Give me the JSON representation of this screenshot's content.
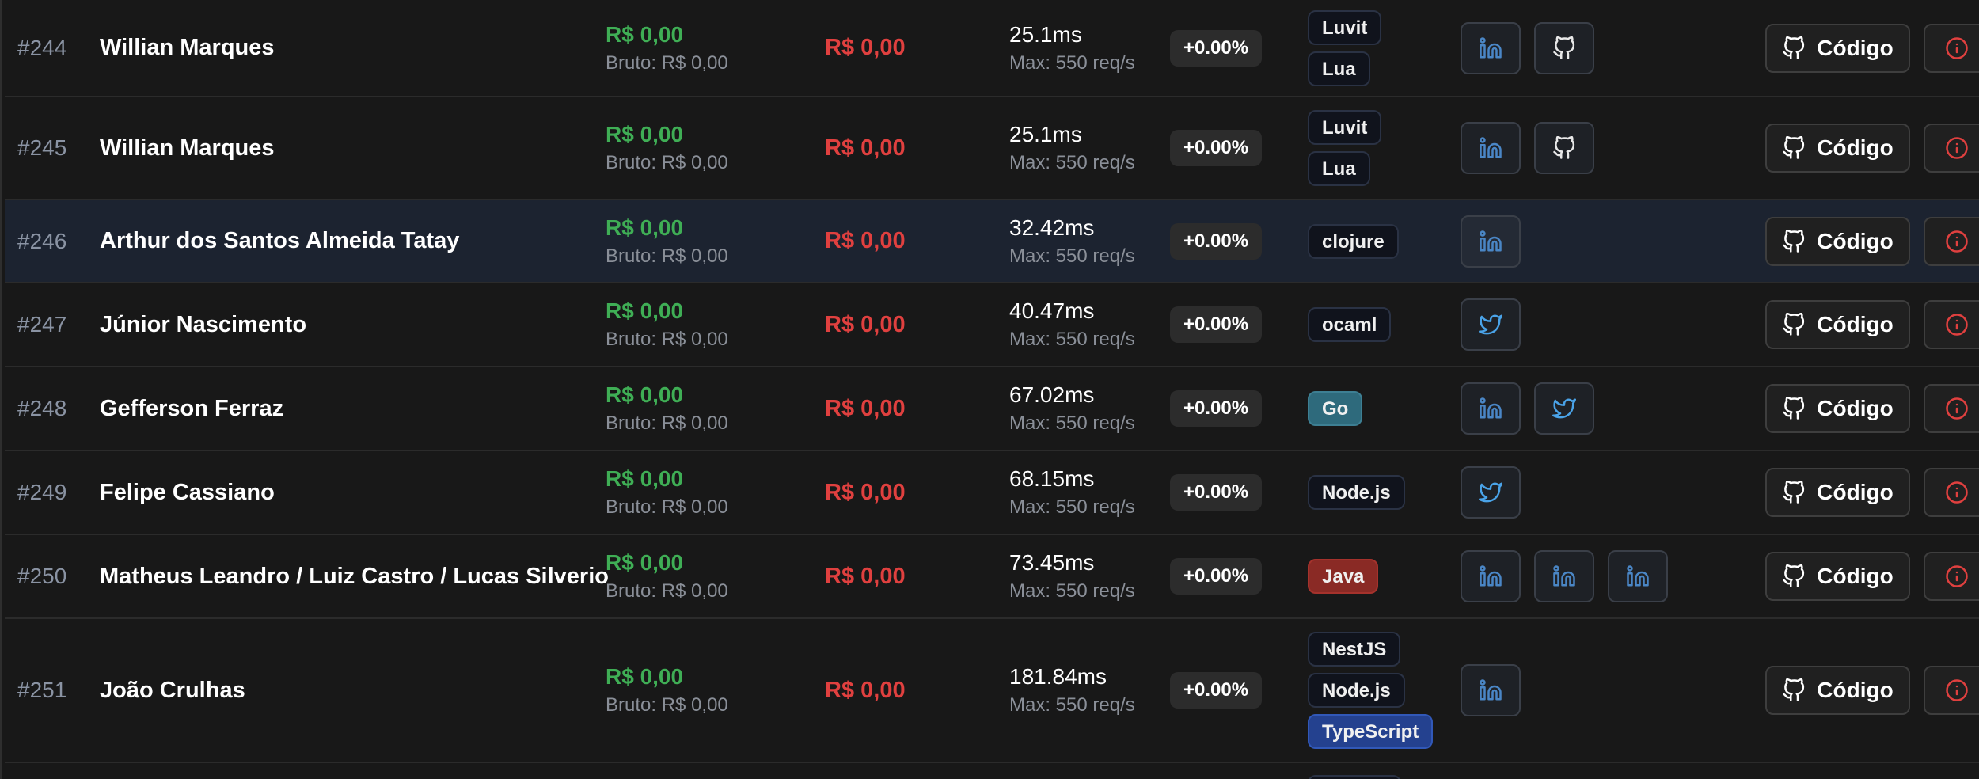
{
  "labels": {
    "code_button": "Código"
  },
  "colors": {
    "positive": "#3fae55",
    "negative": "#e0403f",
    "linkedin": "#4a86c5",
    "twitter": "#4aa3e8",
    "info": "#e0403f"
  },
  "rows": [
    {
      "rank": "#244",
      "name": "Willian Marques",
      "net": "R$ 0,00",
      "gross": "Bruto: R$ 0,00",
      "cost": "R$ 0,00",
      "latency": "25.1ms",
      "max": "Max: 550 req/s",
      "delta": "+0.00%",
      "techs": [
        {
          "label": "Luvit",
          "style": "default"
        },
        {
          "label": "Lua",
          "style": "default"
        }
      ],
      "socials": [
        "linkedin-icon",
        "github-icon"
      ],
      "highlight": false
    },
    {
      "rank": "#245",
      "name": "Willian Marques",
      "net": "R$ 0,00",
      "gross": "Bruto: R$ 0,00",
      "cost": "R$ 0,00",
      "latency": "25.1ms",
      "max": "Max: 550 req/s",
      "delta": "+0.00%",
      "techs": [
        {
          "label": "Luvit",
          "style": "default"
        },
        {
          "label": "Lua",
          "style": "default"
        }
      ],
      "socials": [
        "linkedin-icon",
        "github-icon"
      ],
      "highlight": false
    },
    {
      "rank": "#246",
      "name": "Arthur dos Santos Almeida Tatay",
      "net": "R$ 0,00",
      "gross": "Bruto: R$ 0,00",
      "cost": "R$ 0,00",
      "latency": "32.42ms",
      "max": "Max: 550 req/s",
      "delta": "+0.00%",
      "techs": [
        {
          "label": "clojure",
          "style": "default"
        }
      ],
      "socials": [
        "linkedin-icon"
      ],
      "highlight": true
    },
    {
      "rank": "#247",
      "name": "Júnior Nascimento",
      "net": "R$ 0,00",
      "gross": "Bruto: R$ 0,00",
      "cost": "R$ 0,00",
      "latency": "40.47ms",
      "max": "Max: 550 req/s",
      "delta": "+0.00%",
      "techs": [
        {
          "label": "ocaml",
          "style": "default"
        }
      ],
      "socials": [
        "twitter-icon"
      ],
      "highlight": false
    },
    {
      "rank": "#248",
      "name": "Gefferson Ferraz",
      "net": "R$ 0,00",
      "gross": "Bruto: R$ 0,00",
      "cost": "R$ 0,00",
      "latency": "67.02ms",
      "max": "Max: 550 req/s",
      "delta": "+0.00%",
      "techs": [
        {
          "label": "Go",
          "style": "go"
        }
      ],
      "socials": [
        "linkedin-icon",
        "twitter-icon"
      ],
      "highlight": false
    },
    {
      "rank": "#249",
      "name": "Felipe Cassiano",
      "net": "R$ 0,00",
      "gross": "Bruto: R$ 0,00",
      "cost": "R$ 0,00",
      "latency": "68.15ms",
      "max": "Max: 550 req/s",
      "delta": "+0.00%",
      "techs": [
        {
          "label": "Node.js",
          "style": "default"
        }
      ],
      "socials": [
        "twitter-icon"
      ],
      "highlight": false
    },
    {
      "rank": "#250",
      "name": "Matheus Leandro / Luiz Castro / Lucas Silverio",
      "net": "R$ 0,00",
      "gross": "Bruto: R$ 0,00",
      "cost": "R$ 0,00",
      "latency": "73.45ms",
      "max": "Max: 550 req/s",
      "delta": "+0.00%",
      "techs": [
        {
          "label": "Java",
          "style": "java"
        }
      ],
      "socials": [
        "linkedin-icon",
        "linkedin-icon",
        "linkedin-icon"
      ],
      "highlight": false
    },
    {
      "rank": "#251",
      "name": "João Crulhas",
      "net": "R$ 0,00",
      "gross": "Bruto: R$ 0,00",
      "cost": "R$ 0,00",
      "latency": "181.84ms",
      "max": "Max: 550 req/s",
      "delta": "+0.00%",
      "techs": [
        {
          "label": "NestJS",
          "style": "default"
        },
        {
          "label": "Node.js",
          "style": "default"
        },
        {
          "label": "TypeScript",
          "style": "ts"
        }
      ],
      "socials": [
        "linkedin-icon"
      ],
      "highlight": false
    }
  ]
}
